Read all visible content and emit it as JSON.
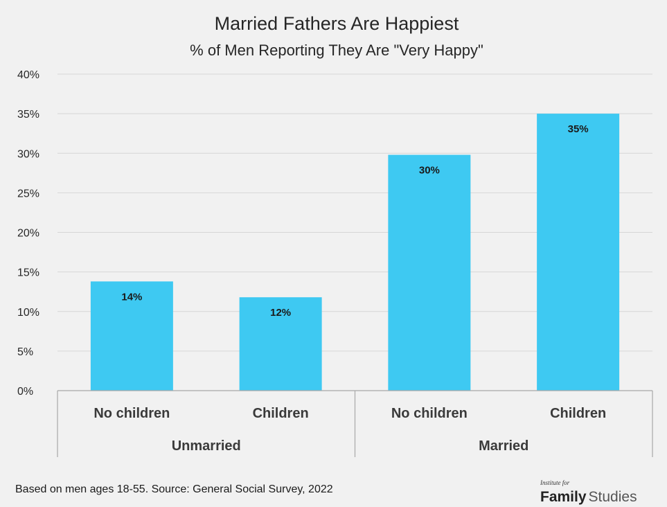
{
  "chart_data": {
    "type": "bar",
    "title": "Married Fathers Are Happiest",
    "subtitle": "% of Men Reporting They Are \"Very Happy\"",
    "categories": [
      "No children",
      "Children",
      "No children",
      "Children"
    ],
    "groups": [
      {
        "label": "Unmarried",
        "span": [
          0,
          1
        ]
      },
      {
        "label": "Married",
        "span": [
          2,
          3
        ]
      }
    ],
    "values": [
      13.8,
      11.8,
      29.8,
      35.0
    ],
    "data_labels": [
      "14%",
      "12%",
      "30%",
      "35%"
    ],
    "ylim": [
      0,
      40
    ],
    "yticks": [
      0,
      5,
      10,
      15,
      20,
      25,
      30,
      35,
      40
    ],
    "ytick_labels": [
      "0%",
      "5%",
      "10%",
      "15%",
      "20%",
      "25%",
      "30%",
      "35%",
      "40%"
    ],
    "grid": true,
    "bar_color": "#3ec9f2"
  },
  "footnote": "Based on men ages 18-55. Source: General Social Survey, 2022",
  "logo": {
    "small": "Institute for",
    "bold": "Family",
    "light": "Studies"
  }
}
